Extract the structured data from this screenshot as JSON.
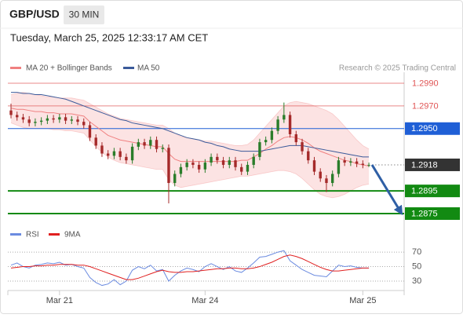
{
  "header": {
    "symbol": "GBP/USD",
    "interval": "30 MIN",
    "timestamp": "Tuesday, March 25, 2025 12:33:17 AM CET",
    "source": "Research © 2025 Trading Central"
  },
  "chart_data": [
    {
      "type": "candlestick",
      "ylim": [
        1.2866,
        1.2998
      ],
      "up_color": "#2a7d2a",
      "down_color": "#a52a2a",
      "projection_color": "#2f5fa5",
      "open": [
        1.2966,
        1.2962,
        1.296,
        1.2958,
        1.2955,
        1.2956,
        1.2957,
        1.2959,
        1.2958,
        1.296,
        1.2957,
        1.2958,
        1.2956,
        1.2953,
        1.2942,
        1.2935,
        1.2928,
        1.2926,
        1.293,
        1.2925,
        1.2922,
        1.2934,
        1.2938,
        1.2935,
        1.294,
        1.2932,
        1.2933,
        1.2902,
        1.291,
        1.2916,
        1.292,
        1.2918,
        1.2914,
        1.292,
        1.2925,
        1.2922,
        1.2918,
        1.2922,
        1.2916,
        1.2912,
        1.2918,
        1.2925,
        1.2938,
        1.294,
        1.2948,
        1.2958,
        1.2962,
        1.2945,
        1.2938,
        1.293,
        1.2922,
        1.2912,
        1.2906,
        1.2902,
        1.291,
        1.2922,
        1.292,
        1.2921,
        1.2919,
        1.2918
      ],
      "high": [
        1.2972,
        1.2965,
        1.2963,
        1.2961,
        1.2959,
        1.296,
        1.2962,
        1.2962,
        1.2963,
        1.2963,
        1.2961,
        1.2961,
        1.2959,
        1.2956,
        1.2945,
        1.2938,
        1.2931,
        1.2933,
        1.2933,
        1.2928,
        1.2937,
        1.2941,
        1.2941,
        1.2943,
        1.2943,
        1.2936,
        1.2936,
        1.2913,
        1.2919,
        1.2923,
        1.2923,
        1.2921,
        1.2923,
        1.2928,
        1.2928,
        1.2925,
        1.2925,
        1.2925,
        1.2919,
        1.2921,
        1.2928,
        1.2941,
        1.2943,
        1.2951,
        1.2961,
        1.2973,
        1.2965,
        1.2948,
        1.2941,
        1.2933,
        1.2925,
        1.2915,
        1.2909,
        1.2913,
        1.2925,
        1.2925,
        1.2924,
        1.2924,
        1.2922,
        1.292
      ],
      "low": [
        1.2959,
        1.2957,
        1.2955,
        1.2952,
        1.2952,
        1.2953,
        1.2954,
        1.2955,
        1.2955,
        1.2954,
        1.2954,
        1.2953,
        1.295,
        1.2939,
        1.2932,
        1.2925,
        1.2923,
        1.2923,
        1.2922,
        1.2919,
        1.2919,
        1.2931,
        1.2932,
        1.2932,
        1.2929,
        1.2929,
        1.2884,
        1.2899,
        1.2907,
        1.2913,
        1.2915,
        1.2911,
        1.2911,
        1.2917,
        1.2919,
        1.2915,
        1.2915,
        1.2913,
        1.2909,
        1.2909,
        1.2915,
        1.2922,
        1.2935,
        1.2937,
        1.2945,
        1.2955,
        1.2942,
        1.2935,
        1.2927,
        1.2919,
        1.2909,
        1.2903,
        1.2894,
        1.2899,
        1.2907,
        1.2917,
        1.2917,
        1.2916,
        1.2915,
        1.2916
      ],
      "close": [
        1.2962,
        1.296,
        1.2958,
        1.2955,
        1.2956,
        1.2957,
        1.2959,
        1.2958,
        1.296,
        1.2957,
        1.2958,
        1.2956,
        1.2953,
        1.2942,
        1.2935,
        1.2928,
        1.2926,
        1.293,
        1.2925,
        1.2922,
        1.2934,
        1.2938,
        1.2935,
        1.294,
        1.2932,
        1.2933,
        1.2902,
        1.291,
        1.2916,
        1.292,
        1.2918,
        1.2914,
        1.292,
        1.2925,
        1.2922,
        1.2918,
        1.2922,
        1.2916,
        1.2912,
        1.2918,
        1.2925,
        1.2938,
        1.294,
        1.2948,
        1.2958,
        1.2962,
        1.2945,
        1.2938,
        1.293,
        1.2922,
        1.2912,
        1.2906,
        1.2902,
        1.291,
        1.2922,
        1.292,
        1.2921,
        1.2919,
        1.2918,
        1.2918
      ],
      "series": [
        {
          "name": "MA 20 + Bollinger Bands",
          "color": "#f08080",
          "band_color": "#fcdede",
          "values": [
            1.2968,
            1.2967,
            1.2967,
            1.2966,
            1.2965,
            1.2965,
            1.2964,
            1.2964,
            1.2963,
            1.2963,
            1.2963,
            1.2962,
            1.2961,
            1.2956,
            1.2952,
            1.2948,
            1.2944,
            1.2942,
            1.294,
            1.2939,
            1.2938,
            1.2937,
            1.2936,
            1.2935,
            1.2934,
            1.2934,
            1.2928,
            1.2923,
            1.2921,
            1.2921,
            1.2921,
            1.2921,
            1.2921,
            1.2921,
            1.2921,
            1.2921,
            1.2921,
            1.2921,
            1.2922,
            1.2922,
            1.2925,
            1.2928,
            1.2932,
            1.2935,
            1.2939,
            1.2942,
            1.2943,
            1.2942,
            1.294,
            1.2937,
            1.2933,
            1.293,
            1.2928,
            1.2926,
            1.2924,
            1.2922,
            1.2921,
            1.2919,
            1.2918,
            1.2917
          ],
          "upper": [
            1.298,
            1.2981,
            1.2982,
            1.2981,
            1.298,
            1.2979,
            1.2978,
            1.2978,
            1.2977,
            1.2977,
            1.2977,
            1.2976,
            1.2975,
            1.2972,
            1.2969,
            1.2966,
            1.2963,
            1.2961,
            1.2959,
            1.2958,
            1.2957,
            1.2956,
            1.2955,
            1.2954,
            1.2953,
            1.2953,
            1.295,
            1.2946,
            1.2943,
            1.2942,
            1.2941,
            1.294,
            1.2939,
            1.2939,
            1.2938,
            1.2937,
            1.2936,
            1.2935,
            1.2935,
            1.2936,
            1.294,
            1.2946,
            1.2952,
            1.2958,
            1.2964,
            1.297,
            1.2973,
            1.2974,
            1.2973,
            1.2972,
            1.297,
            1.2968,
            1.2966,
            1.2963,
            1.2958,
            1.2952,
            1.2946,
            1.294,
            1.2935,
            1.2932
          ],
          "lower": [
            1.2955,
            1.2953,
            1.2951,
            1.295,
            1.295,
            1.295,
            1.295,
            1.2949,
            1.2949,
            1.2948,
            1.2948,
            1.2947,
            1.2946,
            1.294,
            1.2934,
            1.2929,
            1.2925,
            1.2922,
            1.292,
            1.2919,
            1.2918,
            1.2917,
            1.2916,
            1.2915,
            1.2914,
            1.2914,
            1.2905,
            1.29,
            1.2898,
            1.2899,
            1.29,
            1.2901,
            1.2902,
            1.2903,
            1.2904,
            1.2905,
            1.2906,
            1.2907,
            1.2908,
            1.2908,
            1.2909,
            1.291,
            1.2911,
            1.2912,
            1.2913,
            1.2913,
            1.2912,
            1.291,
            1.2906,
            1.2901,
            1.2896,
            1.2892,
            1.289,
            1.2889,
            1.289,
            1.2892,
            1.2895,
            1.2898,
            1.29,
            1.2901
          ]
        },
        {
          "name": "MA 50",
          "color": "#3b5a9a",
          "values": [
            1.2982,
            1.2982,
            1.2981,
            1.2981,
            1.298,
            1.298,
            1.2979,
            1.2978,
            1.2977,
            1.2976,
            1.2974,
            1.2972,
            1.297,
            1.2968,
            1.2966,
            1.2964,
            1.2962,
            1.296,
            1.2958,
            1.2957,
            1.2955,
            1.2954,
            1.2953,
            1.2952,
            1.2951,
            1.295,
            1.2948,
            1.2946,
            1.2944,
            1.2942,
            1.2941,
            1.294,
            1.2938,
            1.2937,
            1.2935,
            1.2934,
            1.2932,
            1.2931,
            1.293,
            1.293,
            1.293,
            1.293,
            1.2931,
            1.2932,
            1.2933,
            1.2934,
            1.2935,
            1.2935,
            1.2935,
            1.2934,
            1.2933,
            1.2932,
            1.2931,
            1.293,
            1.2929,
            1.2928,
            1.2927,
            1.2926,
            1.2925,
            1.2925
          ]
        }
      ],
      "levels": [
        {
          "value": 1.299,
          "label": "1.2990",
          "color": "#e05555",
          "style": "line",
          "tag": "text"
        },
        {
          "value": 1.297,
          "label": "1.2970",
          "color": "#e05555",
          "style": "line",
          "tag": "text"
        },
        {
          "value": 1.295,
          "label": "1.2950",
          "color": "#1f5fd6",
          "style": "line",
          "tag": "box"
        },
        {
          "value": 1.2918,
          "color": "#333333",
          "style": "dotted",
          "tag": "box"
        },
        {
          "value": 1.2895,
          "color": "#128a12",
          "style": "thick",
          "tag": "box"
        },
        {
          "value": 1.2875,
          "color": "#128a12",
          "style": "thick",
          "tag": "box"
        }
      ]
    },
    {
      "type": "line",
      "ylim": [
        17,
        82
      ],
      "yticks": [
        30,
        50,
        70
      ],
      "categories": [
        null,
        null,
        null,
        null,
        null,
        null,
        null,
        null,
        "Mar 21",
        null,
        null,
        null,
        null,
        null,
        null,
        null,
        null,
        null,
        null,
        null,
        null,
        null,
        null,
        null,
        null,
        null,
        null,
        null,
        null,
        null,
        null,
        null,
        "Mar 24",
        null,
        null,
        null,
        null,
        null,
        null,
        null,
        null,
        null,
        null,
        null,
        null,
        null,
        null,
        null,
        null,
        null,
        null,
        null,
        null,
        null,
        null,
        null,
        null,
        null,
        "Mar 25",
        null
      ],
      "series": [
        {
          "name": "RSI",
          "color": "#6b8be0",
          "values": [
            52,
            55,
            50,
            48,
            52,
            53,
            55,
            54,
            56,
            52,
            53,
            50,
            48,
            35,
            28,
            24,
            26,
            32,
            25,
            30,
            45,
            50,
            47,
            52,
            44,
            46,
            30,
            38,
            44,
            48,
            46,
            43,
            50,
            54,
            50,
            46,
            50,
            44,
            42,
            48,
            55,
            63,
            64,
            67,
            70,
            72,
            58,
            52,
            46,
            42,
            38,
            37,
            36,
            44,
            52,
            50,
            51,
            49,
            48,
            48
          ]
        },
        {
          "name": "9MA",
          "color": "#e02020",
          "values": [
            48,
            49,
            50,
            50,
            51,
            51,
            52,
            52,
            53,
            53,
            53,
            52,
            52,
            50,
            47,
            44,
            41,
            38,
            35,
            32,
            32,
            34,
            37,
            40,
            43,
            45,
            43,
            42,
            42,
            43,
            43,
            44,
            45,
            46,
            47,
            47,
            48,
            48,
            47,
            47,
            48,
            50,
            53,
            56,
            60,
            64,
            66,
            64,
            61,
            57,
            53,
            49,
            46,
            44,
            44,
            45,
            46,
            47,
            48,
            48
          ]
        }
      ]
    }
  ]
}
